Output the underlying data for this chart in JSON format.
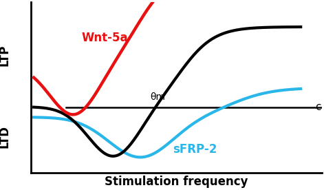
{
  "title": "",
  "xlabel": "Stimulation frequency",
  "ylabel_top": "LTP",
  "ylabel_bottom": "LTD",
  "theta_label": "θm",
  "c_label": "c",
  "wnt_label": "Wnt-5a",
  "sfrp_label": "sFRP-2",
  "colors": {
    "black": "#000000",
    "red": "#e81010",
    "cyan": "#29b6e8",
    "hline": "#000000"
  },
  "lw_black": 3.0,
  "lw_red": 3.2,
  "lw_cyan": 3.0,
  "background": "#ffffff"
}
